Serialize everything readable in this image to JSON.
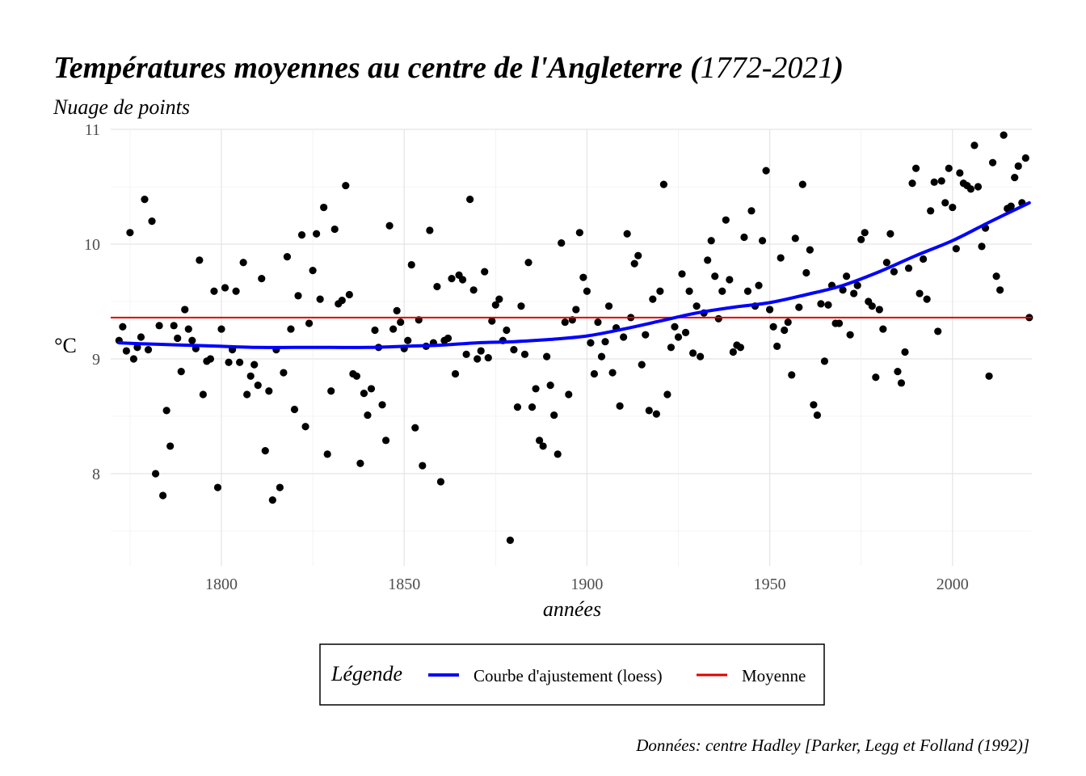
{
  "chart_data": {
    "type": "scatter",
    "title_main": "Températures moyennes au centre de l'Angleterre (",
    "title_years": "1772-2021",
    "title_close": ")",
    "subtitle": "Nuage de points",
    "xlabel": "années",
    "ylabel": "°C",
    "caption": "Données: centre Hadley [Parker, Legg et Folland (1992)]",
    "xlim": [
      1770,
      2022
    ],
    "ylim": [
      7.2,
      11
    ],
    "x_ticks": [
      1800,
      1850,
      1900,
      1950,
      2000
    ],
    "y_ticks": [
      8,
      9,
      10,
      11
    ],
    "grid": true,
    "legend": {
      "title": "Légende",
      "position": "bottom",
      "items": [
        {
          "label": "Courbe d'ajustement (loess)",
          "color": "#0000ff"
        },
        {
          "label": "Moyenne",
          "color": "#e00000"
        }
      ]
    },
    "mean": 9.36,
    "mean_color": "#e00000",
    "point_color": "#000000",
    "loess_color": "#0000ff",
    "loess": {
      "x": [
        1772,
        1780,
        1790,
        1800,
        1810,
        1820,
        1830,
        1840,
        1850,
        1860,
        1870,
        1880,
        1890,
        1900,
        1910,
        1920,
        1930,
        1940,
        1950,
        1960,
        1970,
        1980,
        1990,
        2000,
        2010,
        2021
      ],
      "y": [
        9.14,
        9.13,
        9.12,
        9.11,
        9.1,
        9.1,
        9.1,
        9.1,
        9.11,
        9.12,
        9.14,
        9.15,
        9.17,
        9.2,
        9.26,
        9.33,
        9.4,
        9.45,
        9.49,
        9.56,
        9.64,
        9.76,
        9.9,
        10.03,
        10.19,
        10.36
      ]
    },
    "points": {
      "x": [
        1772,
        1773,
        1774,
        1775,
        1776,
        1777,
        1778,
        1779,
        1780,
        1781,
        1782,
        1783,
        1784,
        1785,
        1786,
        1787,
        1788,
        1789,
        1790,
        1791,
        1792,
        1793,
        1794,
        1795,
        1796,
        1797,
        1798,
        1799,
        1800,
        1801,
        1802,
        1803,
        1804,
        1805,
        1806,
        1807,
        1808,
        1809,
        1810,
        1811,
        1812,
        1813,
        1814,
        1815,
        1816,
        1817,
        1818,
        1819,
        1820,
        1821,
        1822,
        1823,
        1824,
        1825,
        1826,
        1827,
        1828,
        1829,
        1830,
        1831,
        1832,
        1833,
        1834,
        1835,
        1836,
        1837,
        1838,
        1839,
        1840,
        1841,
        1842,
        1843,
        1844,
        1845,
        1846,
        1847,
        1848,
        1849,
        1850,
        1851,
        1852,
        1853,
        1854,
        1855,
        1856,
        1857,
        1858,
        1859,
        1860,
        1861,
        1862,
        1863,
        1864,
        1865,
        1866,
        1867,
        1868,
        1869,
        1870,
        1871,
        1872,
        1873,
        1874,
        1875,
        1876,
        1877,
        1878,
        1879,
        1880,
        1881,
        1882,
        1883,
        1884,
        1885,
        1886,
        1887,
        1888,
        1889,
        1890,
        1891,
        1892,
        1893,
        1894,
        1895,
        1896,
        1897,
        1898,
        1899,
        1900,
        1901,
        1902,
        1903,
        1904,
        1905,
        1906,
        1907,
        1908,
        1909,
        1910,
        1911,
        1912,
        1913,
        1914,
        1915,
        1916,
        1917,
        1918,
        1919,
        1920,
        1921,
        1922,
        1923,
        1924,
        1925,
        1926,
        1927,
        1928,
        1929,
        1930,
        1931,
        1932,
        1933,
        1934,
        1935,
        1936,
        1937,
        1938,
        1939,
        1940,
        1941,
        1942,
        1943,
        1944,
        1945,
        1946,
        1947,
        1948,
        1949,
        1950,
        1951,
        1952,
        1953,
        1954,
        1955,
        1956,
        1957,
        1958,
        1959,
        1960,
        1961,
        1962,
        1963,
        1964,
        1965,
        1966,
        1967,
        1968,
        1969,
        1970,
        1971,
        1972,
        1973,
        1974,
        1975,
        1976,
        1977,
        1978,
        1979,
        1980,
        1981,
        1982,
        1983,
        1984,
        1985,
        1986,
        1987,
        1988,
        1989,
        1990,
        1991,
        1992,
        1993,
        1994,
        1995,
        1996,
        1997,
        1998,
        1999,
        2000,
        2001,
        2002,
        2003,
        2004,
        2005,
        2006,
        2007,
        2008,
        2009,
        2010,
        2011,
        2012,
        2013,
        2014,
        2015,
        2016,
        2017,
        2018,
        2019,
        2020,
        2021
      ],
      "y": [
        9.16,
        9.28,
        9.07,
        10.1,
        9.0,
        9.1,
        9.19,
        10.39,
        9.08,
        10.2,
        8.0,
        9.29,
        7.81,
        8.55,
        8.24,
        9.29,
        9.18,
        8.89,
        9.43,
        9.26,
        9.16,
        9.09,
        9.86,
        8.69,
        8.98,
        9.0,
        9.59,
        7.88,
        9.26,
        9.62,
        8.97,
        9.08,
        9.59,
        8.97,
        9.84,
        8.69,
        8.85,
        8.95,
        8.77,
        9.7,
        8.2,
        8.72,
        7.77,
        9.08,
        7.88,
        8.88,
        9.89,
        9.26,
        8.56,
        9.55,
        10.08,
        8.41,
        9.31,
        9.77,
        10.09,
        9.52,
        10.32,
        8.17,
        8.72,
        10.13,
        9.48,
        9.51,
        10.51,
        9.56,
        8.87,
        8.85,
        8.09,
        8.7,
        8.51,
        8.74,
        9.25,
        9.1,
        8.6,
        8.29,
        10.16,
        9.26,
        9.42,
        9.32,
        9.09,
        9.16,
        9.82,
        8.4,
        9.34,
        8.07,
        9.11,
        10.12,
        9.14,
        9.63,
        7.93,
        9.16,
        9.18,
        9.7,
        8.87,
        9.73,
        9.69,
        9.04,
        10.39,
        9.6,
        9.0,
        9.07,
        9.76,
        9.01,
        9.33,
        9.47,
        9.52,
        9.16,
        9.25,
        7.42,
        9.08,
        8.58,
        9.46,
        9.04,
        9.84,
        8.58,
        8.74,
        8.29,
        8.24,
        9.02,
        8.77,
        8.51,
        8.17,
        10.01,
        9.32,
        8.69,
        9.34,
        9.43,
        10.1,
        9.71,
        9.59,
        9.14,
        8.87,
        9.32,
        9.02,
        9.15,
        9.46,
        8.88,
        9.27,
        8.59,
        9.19,
        10.09,
        9.36,
        9.83,
        9.9,
        8.95,
        9.21,
        8.55,
        9.52,
        8.52,
        9.59,
        10.52,
        8.69,
        9.1,
        9.28,
        9.19,
        9.74,
        9.23,
        9.59,
        9.05,
        9.46,
        9.02,
        9.4,
        9.86,
        10.03,
        9.72,
        9.35,
        9.59,
        10.21,
        9.69,
        9.06,
        9.12,
        9.1,
        10.06,
        9.59,
        10.29,
        9.46,
        9.64,
        10.03,
        10.64,
        9.43,
        9.28,
        9.11,
        9.88,
        9.25,
        9.32,
        8.86,
        10.05,
        9.45,
        10.52,
        9.75,
        9.95,
        8.6,
        8.51,
        9.48,
        8.98,
        9.47,
        9.64,
        9.31,
        9.31,
        9.6,
        9.72,
        9.21,
        9.57,
        9.64,
        10.04,
        10.1,
        9.5,
        9.46,
        8.84,
        9.43,
        9.26,
        9.84,
        10.09,
        9.76,
        8.89,
        8.79,
        9.06,
        9.79,
        10.53,
        10.66,
        9.57,
        9.87,
        9.52,
        10.29,
        10.54,
        9.24,
        10.55,
        10.36,
        10.66,
        10.32,
        9.96,
        10.62,
        10.53,
        10.51,
        10.48,
        10.86,
        10.5,
        9.98,
        10.14,
        8.85,
        10.71,
        9.72,
        9.6,
        10.95,
        10.31,
        10.33,
        10.58,
        10.68,
        10.36,
        10.75,
        9.36
      ]
    }
  }
}
